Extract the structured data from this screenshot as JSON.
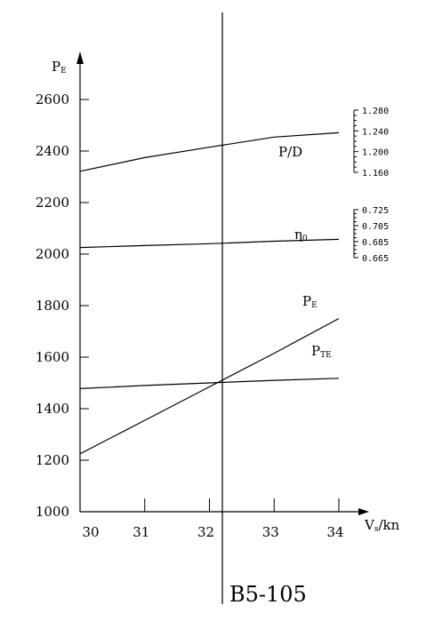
{
  "chart_data": {
    "type": "line",
    "caption": "B5-105",
    "y_axis": {
      "label_main": "P",
      "label_sub": "E",
      "range": [
        1000,
        2700
      ],
      "ticks": [
        1000,
        1200,
        1400,
        1600,
        1800,
        2000,
        2200,
        2400,
        2600
      ],
      "tick_labels": [
        "1000",
        "1200",
        "1400",
        "1600",
        "1800",
        "2000",
        "2200",
        "2400",
        "2600"
      ]
    },
    "x_axis": {
      "label_main": "V",
      "label_sub": "s",
      "label_tail": "/kn",
      "range": [
        30,
        34.4
      ],
      "ticks": [
        30,
        31,
        32,
        33,
        34
      ],
      "tick_labels": [
        "30",
        "31",
        "32",
        "33",
        "34"
      ]
    },
    "vertical_marker_x": 32.2,
    "series": [
      {
        "id": "pe",
        "name_main": "P",
        "name_sub": "E",
        "x": [
          30,
          31,
          32,
          33,
          34
        ],
        "y": [
          1225,
          1355,
          1485,
          1615,
          1750
        ],
        "scale": "left"
      },
      {
        "id": "pte",
        "name_main": "P",
        "name_sub": "TE",
        "x": [
          30,
          31,
          32,
          33,
          34
        ],
        "y": [
          1478,
          1490,
          1500,
          1510,
          1518
        ],
        "scale": "left"
      },
      {
        "id": "eta",
        "name_main": "η",
        "name_sub": "0",
        "x": [
          30,
          31,
          32,
          33,
          34
        ],
        "y": [
          0.6777,
          0.6801,
          0.6825,
          0.6855,
          0.6879
        ],
        "scale": "eta"
      },
      {
        "id": "pd",
        "name_main": "P/D",
        "name_sub": "",
        "x": [
          30,
          31,
          32,
          33,
          34
        ],
        "y": [
          1.162,
          1.1885,
          1.2085,
          1.228,
          1.2365
        ],
        "scale": "pd"
      }
    ],
    "eta_scale": {
      "ticks": [
        0.725,
        0.705,
        0.685,
        0.665
      ],
      "tick_labels": [
        "0.725",
        "0.705",
        "0.685",
        "0.665"
      ]
    },
    "pd_scale": {
      "ticks": [
        1.28,
        1.24,
        1.2,
        1.16
      ],
      "tick_labels": [
        "1.280",
        "1.240",
        "1.200",
        "1.160"
      ]
    }
  }
}
